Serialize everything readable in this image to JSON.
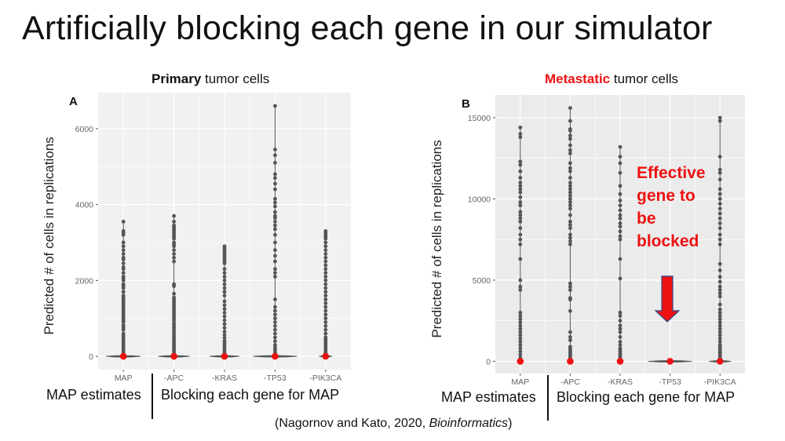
{
  "slide": {
    "title": "Artificially blocking each gene in our simulator",
    "citation_prefix": "(Nagornov and Kato, 2020, ",
    "citation_journal": "Bioinformatics",
    "citation_suffix": ")"
  },
  "panels": [
    {
      "title_bold": "Primary",
      "title_rest": " tumor cells",
      "bottom_left": "MAP estimates",
      "bottom_right": "Blocking each gene for MAP"
    },
    {
      "title_bold": "Metastatic",
      "title_rest": " tumor cells",
      "bottom_left": "MAP estimates",
      "bottom_right": "Blocking each gene for MAP",
      "annotation": [
        "Effective",
        "gene to",
        "be",
        "blocked"
      ]
    }
  ],
  "colors": {
    "panel_a_bg": "#f0f1f0",
    "panel_b_bg": "#ebebeb",
    "points": "#555555",
    "median": "#ee1111",
    "highlight": "#ee1111",
    "arrow_outline": "#2e4a8a"
  },
  "chart_data": [
    {
      "type": "scatter",
      "panel_label": "A",
      "title": "Primary tumor cells",
      "xlabel": "",
      "ylabel": "Predicted # of cells in replications",
      "categories": [
        "MAP",
        "-APC",
        "-KRAS",
        "-TP53",
        "-PIK3CA"
      ],
      "yticks": [
        0,
        2000,
        4000,
        6000
      ],
      "ytick_labels": [
        "0",
        "2000",
        "4000",
        "6000"
      ],
      "ylim": [
        -350,
        6950
      ],
      "grid": true,
      "medians": [
        0,
        0,
        0,
        0,
        0
      ],
      "max_values": [
        3550,
        3700,
        2900,
        6600,
        3300
      ],
      "series": [
        {
          "name": "MAP",
          "values": [
            0,
            20,
            50,
            80,
            120,
            160,
            200,
            250,
            300,
            350,
            400,
            450,
            500,
            550,
            600,
            700,
            760,
            820,
            900,
            950,
            1000,
            1050,
            1100,
            1150,
            1200,
            1250,
            1300,
            1350,
            1400,
            1450,
            1500,
            1550,
            1600,
            1700,
            1800,
            1850,
            1900,
            2000,
            2050,
            2100,
            2200,
            2300,
            2350,
            2450,
            2550,
            2600,
            2700,
            2800,
            2900,
            3000,
            3200,
            3250,
            3300,
            3550
          ]
        },
        {
          "name": "-APC",
          "values": [
            0,
            20,
            50,
            80,
            120,
            160,
            200,
            250,
            300,
            350,
            400,
            460,
            520,
            580,
            640,
            700,
            760,
            820,
            880,
            950,
            1000,
            1050,
            1100,
            1150,
            1200,
            1250,
            1300,
            1350,
            1400,
            1450,
            1500,
            1550,
            1650,
            1850,
            1900,
            2500,
            2600,
            2700,
            2800,
            2900,
            2950,
            3000,
            3100,
            3150,
            3200,
            3250,
            3300,
            3350,
            3400,
            3450,
            3550,
            3700
          ]
        },
        {
          "name": "-KRAS",
          "values": [
            0,
            20,
            50,
            80,
            120,
            170,
            220,
            280,
            340,
            400,
            480,
            560,
            650,
            750,
            850,
            950,
            1050,
            1150,
            1250,
            1350,
            1450,
            1600,
            1700,
            1800,
            1900,
            2000,
            2100,
            2200,
            2300,
            2450,
            2500,
            2550,
            2600,
            2650,
            2700,
            2750,
            2800,
            2850,
            2900
          ]
        },
        {
          "name": "-TP53",
          "values": [
            0,
            20,
            50,
            80,
            120,
            170,
            230,
            300,
            400,
            500,
            600,
            700,
            800,
            900,
            1000,
            1100,
            1200,
            1300,
            1500,
            2100,
            2200,
            2300,
            2500,
            2650,
            2800,
            3000,
            3200,
            3350,
            3450,
            3550,
            3650,
            3700,
            3800,
            3950,
            4050,
            4150,
            4400,
            4550,
            4700,
            4800,
            5100,
            5300,
            5450,
            6600
          ]
        },
        {
          "name": "-PIK3CA",
          "values": [
            0,
            20,
            40,
            60,
            80,
            100,
            150,
            200,
            250,
            300,
            350,
            400,
            450,
            500,
            600,
            700,
            800,
            900,
            1000,
            1100,
            1200,
            1300,
            1400,
            1500,
            1600,
            1700,
            1800,
            1900,
            2000,
            2100,
            2200,
            2300,
            2400,
            2500,
            2600,
            2700,
            2800,
            2900,
            3000,
            3100,
            3150,
            3200,
            3250,
            3300
          ]
        }
      ]
    },
    {
      "type": "scatter",
      "panel_label": "B",
      "title": "Metastatic tumor cells",
      "xlabel": "",
      "ylabel": "Predicted # of cells in replications",
      "categories": [
        "MAP",
        "-APC",
        "-KRAS",
        "-TP53",
        "-PIK3CA"
      ],
      "yticks": [
        0,
        5000,
        10000,
        15000
      ],
      "ytick_labels": [
        "0",
        "5000",
        "10000",
        "15000"
      ],
      "ylim": [
        -750,
        16400
      ],
      "grid": true,
      "medians": [
        0,
        0,
        0,
        0,
        0
      ],
      "max_values": [
        14400,
        15600,
        13200,
        0,
        15000
      ],
      "series": [
        {
          "name": "MAP",
          "values": [
            0,
            200,
            400,
            600,
            800,
            1000,
            1200,
            1400,
            1600,
            1800,
            2000,
            2200,
            2400,
            2600,
            2800,
            3000,
            4400,
            4600,
            5000,
            6300,
            7200,
            7500,
            7800,
            8200,
            8600,
            8800,
            9000,
            9200,
            9600,
            9800,
            10100,
            10400,
            10600,
            10800,
            11000,
            11300,
            11700,
            12100,
            12300,
            13800,
            14000,
            14400
          ]
        },
        {
          "name": "-APC",
          "values": [
            0,
            100,
            200,
            300,
            400,
            500,
            600,
            700,
            800,
            900,
            1300,
            1500,
            1800,
            3100,
            3800,
            3900,
            4400,
            4600,
            4800,
            7200,
            7400,
            7600,
            7800,
            8200,
            8400,
            8600,
            9000,
            9400,
            9600,
            9800,
            10000,
            10200,
            10400,
            10600,
            10800,
            11000,
            11300,
            11700,
            11900,
            12200,
            12800,
            13000,
            13300,
            13700,
            13900,
            14200,
            14300,
            14800,
            15600
          ]
        },
        {
          "name": "-KRAS",
          "values": [
            0,
            100,
            200,
            300,
            400,
            500,
            600,
            700,
            800,
            1000,
            1200,
            1500,
            1800,
            2000,
            2200,
            2500,
            2800,
            3000,
            5100,
            6300,
            7500,
            7700,
            8000,
            8300,
            8500,
            8800,
            9000,
            9300,
            9600,
            9900,
            10300,
            10800,
            11600,
            12200,
            12600,
            13200
          ]
        },
        {
          "name": "-TP53",
          "values": [
            0
          ]
        },
        {
          "name": "-PIK3CA",
          "values": [
            0,
            100,
            200,
            300,
            400,
            500,
            600,
            700,
            800,
            900,
            1000,
            1200,
            1400,
            1600,
            1800,
            2000,
            2200,
            2400,
            2600,
            2800,
            3000,
            3200,
            3500,
            4000,
            4200,
            4400,
            4600,
            4900,
            5200,
            5600,
            6000,
            7200,
            7500,
            7800,
            8200,
            8500,
            8800,
            9100,
            9400,
            9700,
            10000,
            10300,
            10600,
            11200,
            11600,
            11800,
            12600,
            14800,
            15000
          ]
        }
      ]
    }
  ]
}
